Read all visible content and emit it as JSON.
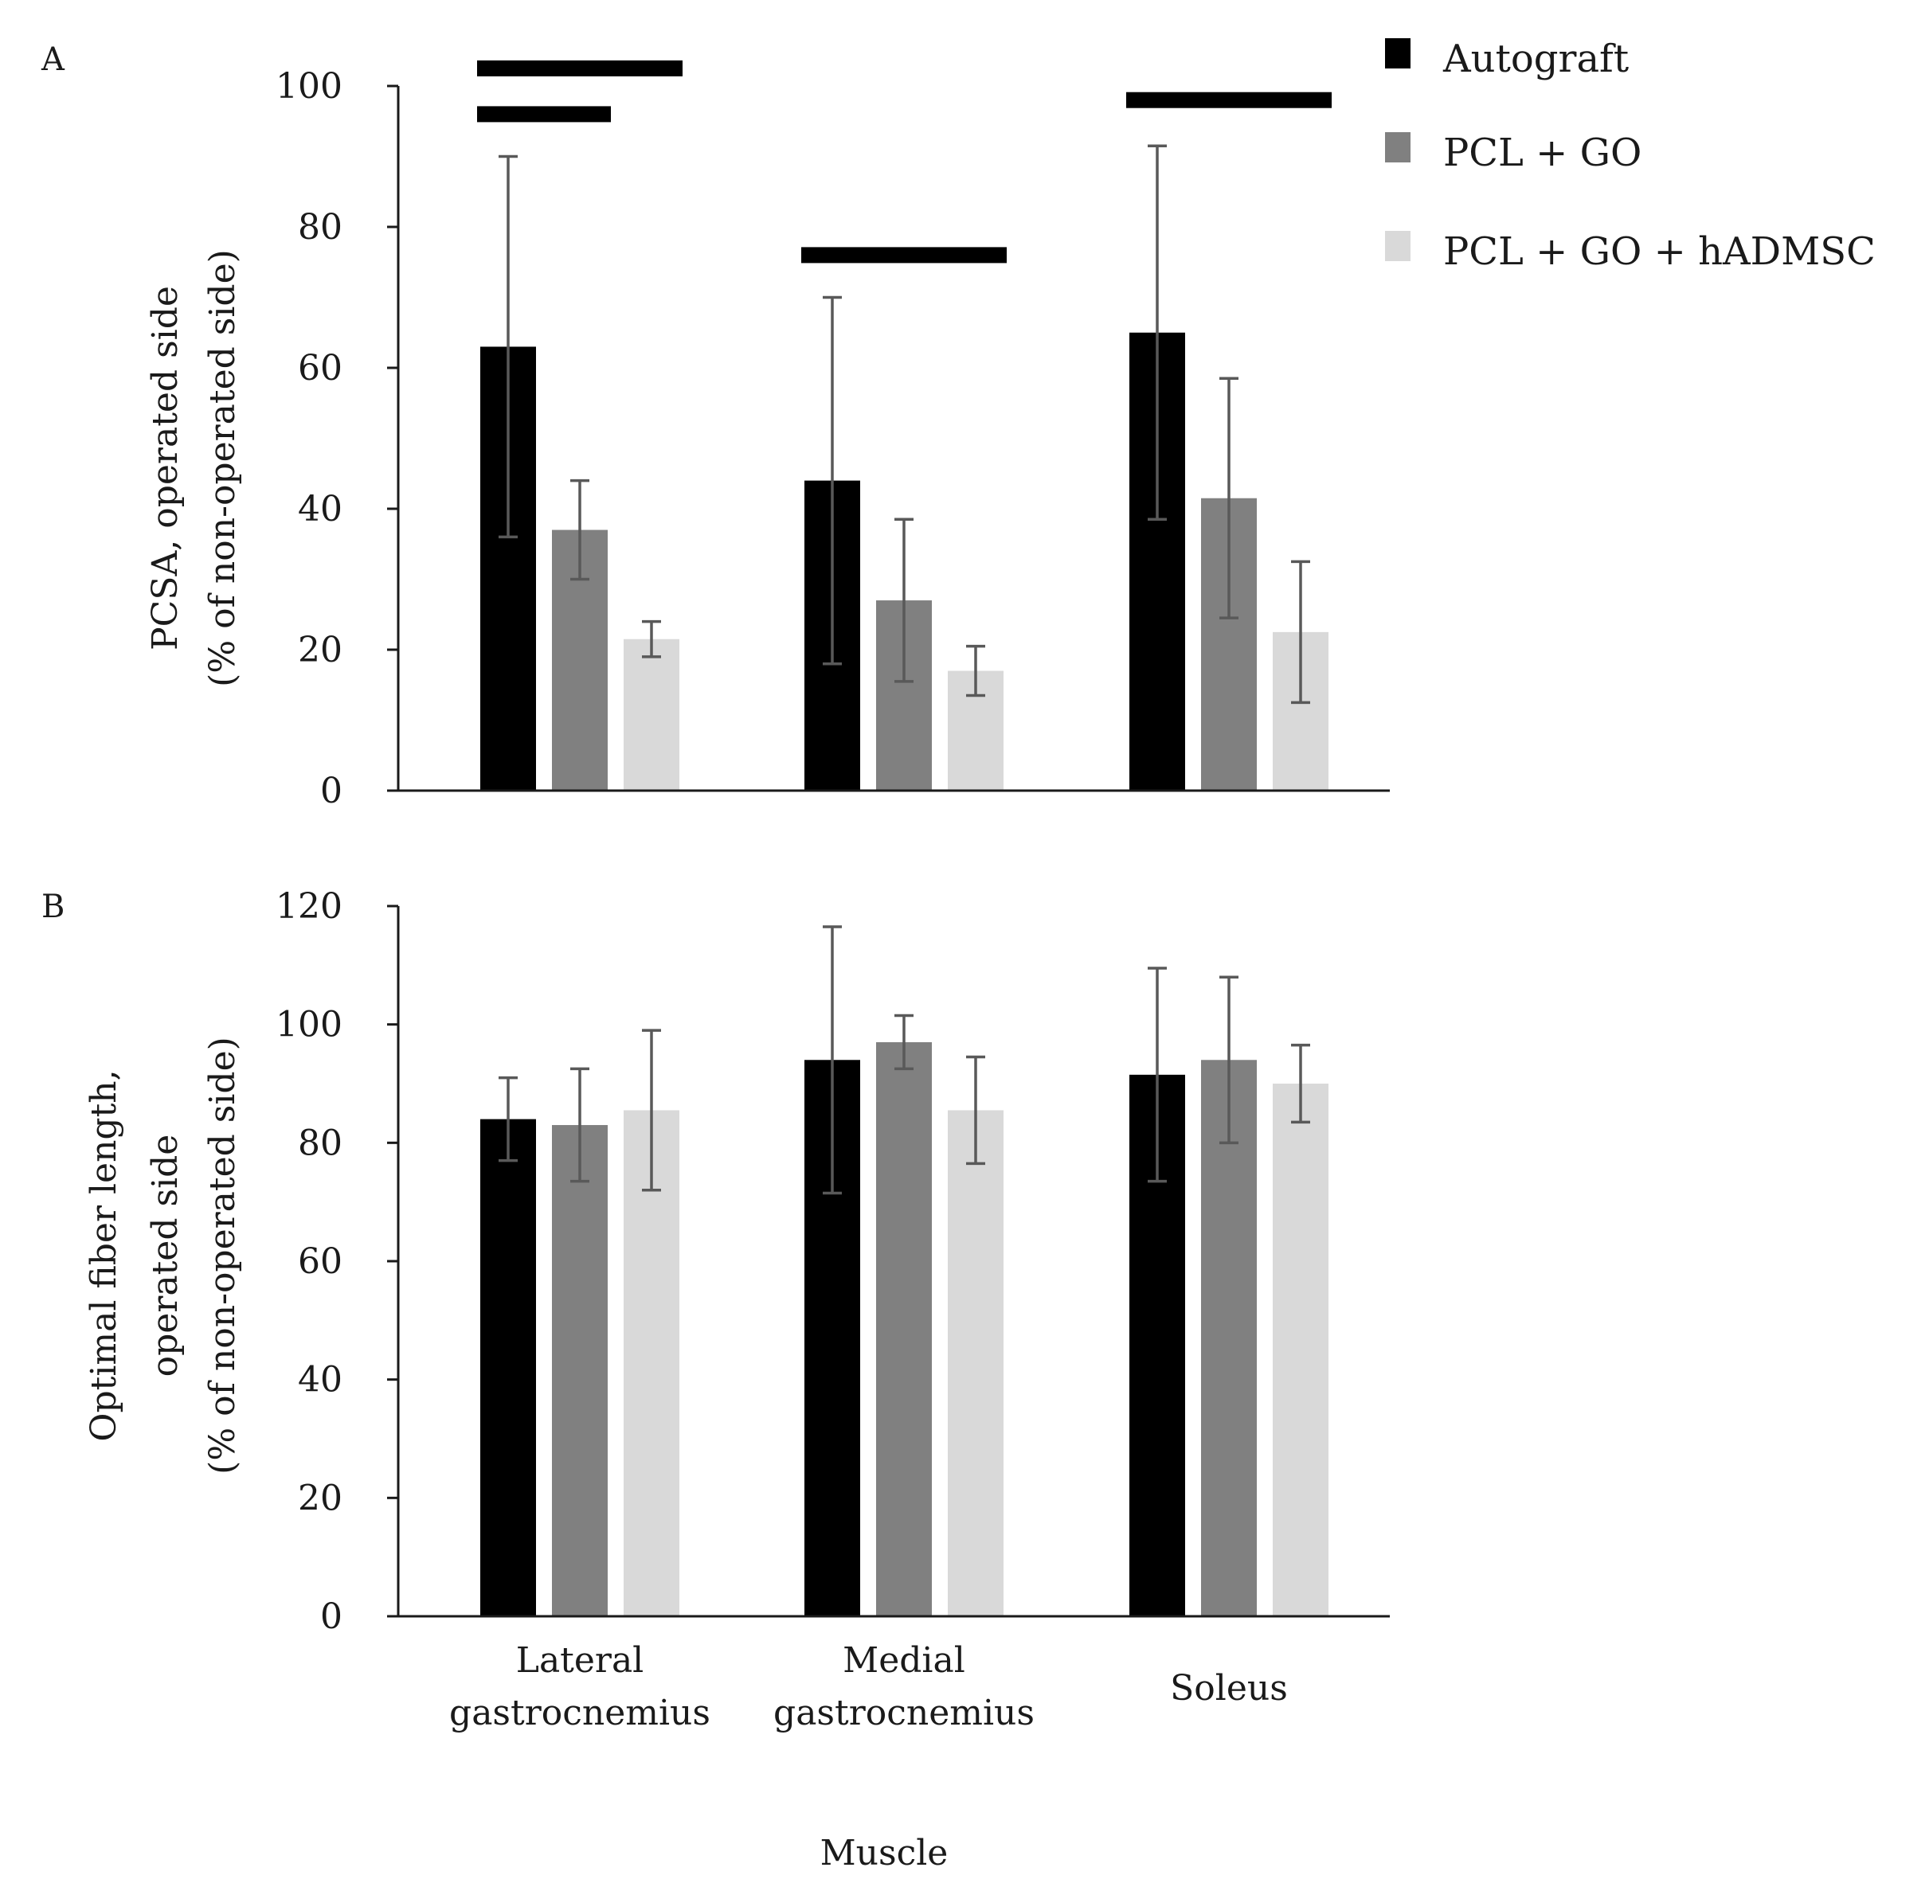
{
  "figure": {
    "xlabel": "Muscle"
  },
  "chart_data": [
    {
      "type": "bar",
      "panel_label": "A",
      "title": "",
      "ylabel_lines": [
        "PCSA, operated side",
        "(% of non-operated side)"
      ],
      "xlabel": "",
      "ylim": [
        0,
        100
      ],
      "yticks": [
        0,
        20,
        40,
        60,
        80,
        100
      ],
      "categories": [
        "Lateral gastrocnemius",
        "Medial gastrocnemius",
        "Soleus"
      ],
      "series": [
        {
          "name": "Autograft",
          "color": "#000000",
          "values": [
            63,
            44,
            65
          ],
          "errors": [
            27,
            26,
            26.5
          ]
        },
        {
          "name": "PCL + GO",
          "color": "#808080",
          "values": [
            37,
            27,
            41.5
          ],
          "errors": [
            7,
            11.5,
            17
          ]
        },
        {
          "name": "PCL + GO + hADMSC",
          "color": "#d9d9d9",
          "values": [
            21.5,
            17,
            22.5
          ],
          "errors": [
            2.5,
            3.5,
            10
          ]
        }
      ],
      "significance_bars": [
        {
          "category": 0,
          "from_series": 0,
          "to_series": 2,
          "level": 102.5
        },
        {
          "category": 0,
          "from_series": 0,
          "to_series": 1,
          "level": 96
        },
        {
          "category": 1,
          "from_series": 0,
          "to_series": 2,
          "level": 76
        },
        {
          "category": 2,
          "from_series": 0,
          "to_series": 2,
          "level": 98
        }
      ],
      "legend": {
        "placement": "top-right",
        "entries": [
          "Autograft",
          "PCL + GO",
          "PCL + GO + hADMSC"
        ]
      }
    },
    {
      "type": "bar",
      "panel_label": "B",
      "title": "",
      "ylabel_lines": [
        "Optimal fiber length,",
        "operated side",
        "(% of non-operated side)"
      ],
      "xlabel": "Muscle",
      "ylim": [
        0,
        120
      ],
      "yticks": [
        0,
        20,
        40,
        60,
        80,
        100,
        120
      ],
      "categories": [
        "Lateral gastrocnemius",
        "Medial gastrocnemius",
        "Soleus"
      ],
      "category_label_lines": [
        [
          "Lateral",
          "gastrocnemius"
        ],
        [
          "Medial",
          "gastrocnemius"
        ],
        [
          "Soleus"
        ]
      ],
      "series": [
        {
          "name": "Autograft",
          "color": "#000000",
          "values": [
            84,
            94,
            91.5
          ],
          "errors": [
            7,
            22.5,
            18
          ]
        },
        {
          "name": "PCL + GO",
          "color": "#808080",
          "values": [
            83,
            97,
            94
          ],
          "errors": [
            9.5,
            4.5,
            14
          ]
        },
        {
          "name": "PCL + GO + hADMSC",
          "color": "#d9d9d9",
          "values": [
            85.5,
            85.5,
            90
          ],
          "errors": [
            13.5,
            9,
            6.5
          ]
        }
      ]
    }
  ]
}
